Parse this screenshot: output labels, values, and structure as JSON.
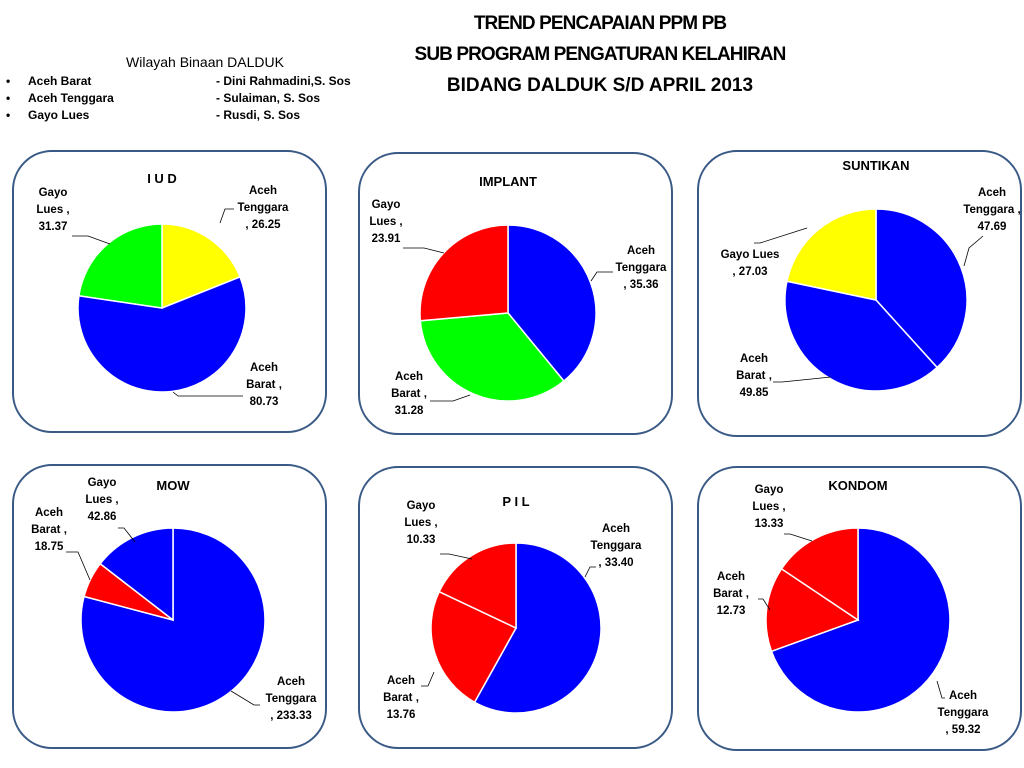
{
  "header": {
    "line1": "TREND PENCAPAIAN   PPM    PB",
    "line2": "SUB   PROGRAM  PENGATURAN   KELAHIRAN",
    "line3": "BIDANG DALDUK S/D APRIL 2013"
  },
  "region": {
    "title": "Wilayah Binaan DALDUK",
    "items": [
      {
        "bullet": "•",
        "area": "Aceh Barat",
        "person": "-  Dini Rahmadini,S. Sos"
      },
      {
        "bullet": "•",
        "area": "Aceh Tenggara",
        "person": "-   Sulaiman, S. Sos"
      },
      {
        "bullet": "•",
        "area": "Gayo Lues",
        "person": "-   Rusdi, S. Sos"
      }
    ]
  },
  "colors": {
    "blue": "#0000ff",
    "red": "#ff0000",
    "green": "#00ff00",
    "yellow": "#ffff00",
    "border": "#3a5a86"
  },
  "chart_data": [
    {
      "type": "pie",
      "title": "I U D",
      "slices": [
        {
          "category": "Aceh Tenggara",
          "value": 26.25,
          "color": "#ffff00",
          "label_lines": [
            "Aceh",
            "Tenggara",
            ", 26.25"
          ]
        },
        {
          "category": "Aceh Barat",
          "value": 80.73,
          "color": "#0000ff",
          "label_lines": [
            "Aceh",
            "Barat ,",
            "80.73"
          ]
        },
        {
          "category": "Gayo Lues",
          "value": 31.37,
          "color": "#00ff00",
          "label_lines": [
            "Gayo",
            "Lues ,",
            "31.37"
          ]
        }
      ]
    },
    {
      "type": "pie",
      "title": "IMPLANT",
      "slices": [
        {
          "category": "Aceh Tenggara",
          "value": 35.36,
          "color": "#0000ff",
          "label_lines": [
            "Aceh",
            "Tenggara",
            ", 35.36"
          ]
        },
        {
          "category": "Aceh Barat",
          "value": 31.28,
          "color": "#00ff00",
          "label_lines": [
            "Aceh",
            "Barat ,",
            "31.28"
          ]
        },
        {
          "category": "Gayo Lues",
          "value": 23.91,
          "color": "#ff0000",
          "label_lines": [
            "Gayo",
            "Lues ,",
            "23.91"
          ]
        }
      ]
    },
    {
      "type": "pie",
      "title": "SUNTIKAN",
      "slices": [
        {
          "category": "Aceh Tenggara",
          "value": 47.69,
          "color": "#0000ff",
          "label_lines": [
            "Aceh",
            "Tenggara ,",
            "47.69"
          ]
        },
        {
          "category": "Aceh Barat",
          "value": 49.85,
          "color": "#0000ff",
          "label_lines": [
            "Aceh",
            "Barat ,",
            "49.85"
          ]
        },
        {
          "category": "Gayo Lues",
          "value": 27.03,
          "color": "#ffff00",
          "label_lines": [
            "Gayo Lues",
            ", 27.03"
          ]
        }
      ]
    },
    {
      "type": "pie",
      "title": "MOW",
      "slices": [
        {
          "category": "Aceh Tenggara",
          "value": 233.33,
          "color": "#0000ff",
          "label_lines": [
            "Aceh",
            "Tenggara",
            ", 233.33"
          ]
        },
        {
          "category": "Aceh Barat",
          "value": 18.75,
          "color": "#ff0000",
          "label_lines": [
            "Aceh",
            "Barat ,",
            "18.75"
          ]
        },
        {
          "category": "Gayo Lues",
          "value": 42.86,
          "color": "#0000ff",
          "label_lines": [
            "Gayo",
            "Lues ,",
            "42.86"
          ]
        }
      ]
    },
    {
      "type": "pie",
      "title": "P I L",
      "slices": [
        {
          "category": "Aceh Tenggara",
          "value": 33.4,
          "color": "#0000ff",
          "label_lines": [
            "Aceh",
            "Tenggara",
            ", 33.40"
          ]
        },
        {
          "category": "Aceh Barat",
          "value": 13.76,
          "color": "#ff0000",
          "label_lines": [
            "Aceh",
            "Barat ,",
            "13.76"
          ]
        },
        {
          "category": "Gayo Lues",
          "value": 10.33,
          "color": "#ff0000",
          "label_lines": [
            "Gayo",
            "Lues ,",
            "10.33"
          ]
        }
      ]
    },
    {
      "type": "pie",
      "title": "KONDOM",
      "slices": [
        {
          "category": "Aceh Tenggara",
          "value": 59.32,
          "color": "#0000ff",
          "label_lines": [
            "Aceh",
            "Tenggara",
            ", 59.32"
          ]
        },
        {
          "category": "Aceh Barat",
          "value": 12.73,
          "color": "#ff0000",
          "label_lines": [
            "Aceh",
            "Barat ,",
            "12.73"
          ]
        },
        {
          "category": "Gayo Lues",
          "value": 13.33,
          "color": "#ff0000",
          "label_lines": [
            "Gayo",
            "Lues ,",
            "13.33"
          ]
        }
      ]
    }
  ]
}
